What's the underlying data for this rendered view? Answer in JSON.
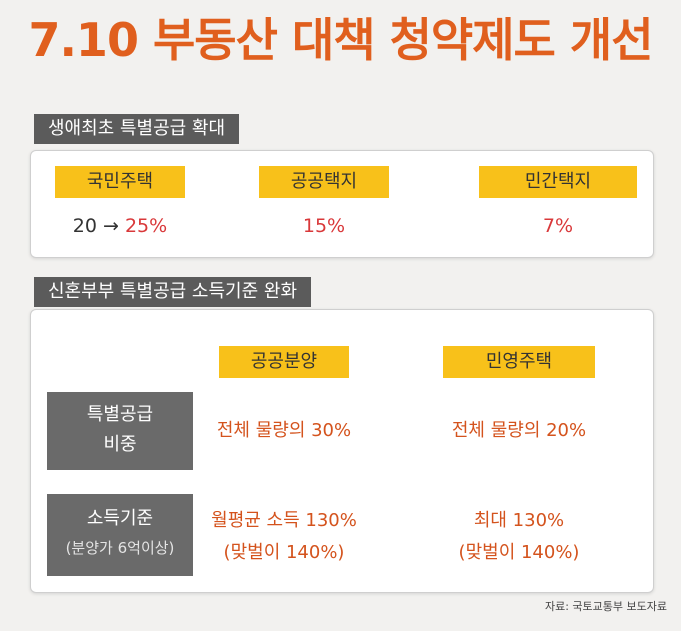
{
  "title": "7.10 부동산 대책 청약제도 개선",
  "section1": {
    "label": "생애최초 특별공급 확대",
    "items": [
      {
        "tag": "국민주택",
        "value_from": "20 →",
        "value_to": "25%"
      },
      {
        "tag": "공공택지",
        "value": "15%"
      },
      {
        "tag": "민간택지",
        "value": "7%"
      }
    ]
  },
  "section2": {
    "label": "신혼부부 특별공급 소득기준 완화",
    "columns": [
      "공공분양",
      "민영주택"
    ],
    "rows": [
      {
        "head_line1": "특별공급",
        "head_line2": "비중",
        "cells": [
          "전체 물량의 30%",
          "전체 물량의 20%"
        ]
      },
      {
        "head_line1": "소득기준",
        "head_line2": "(분양가 6억이상)",
        "cells_line1": [
          "월평균 소득 130%",
          "최대 130%"
        ],
        "cells_line2": [
          "(맞벌이 140%)",
          "(맞벌이 140%)"
        ]
      }
    ]
  },
  "source": "자료: 국토교통부 보도자료",
  "colors": {
    "title": "#e05f1e",
    "accent_yellow": "#f8c11a",
    "red": "#d9383a",
    "orange_text": "#d4531d",
    "label_gray": "#5b5b5b"
  }
}
